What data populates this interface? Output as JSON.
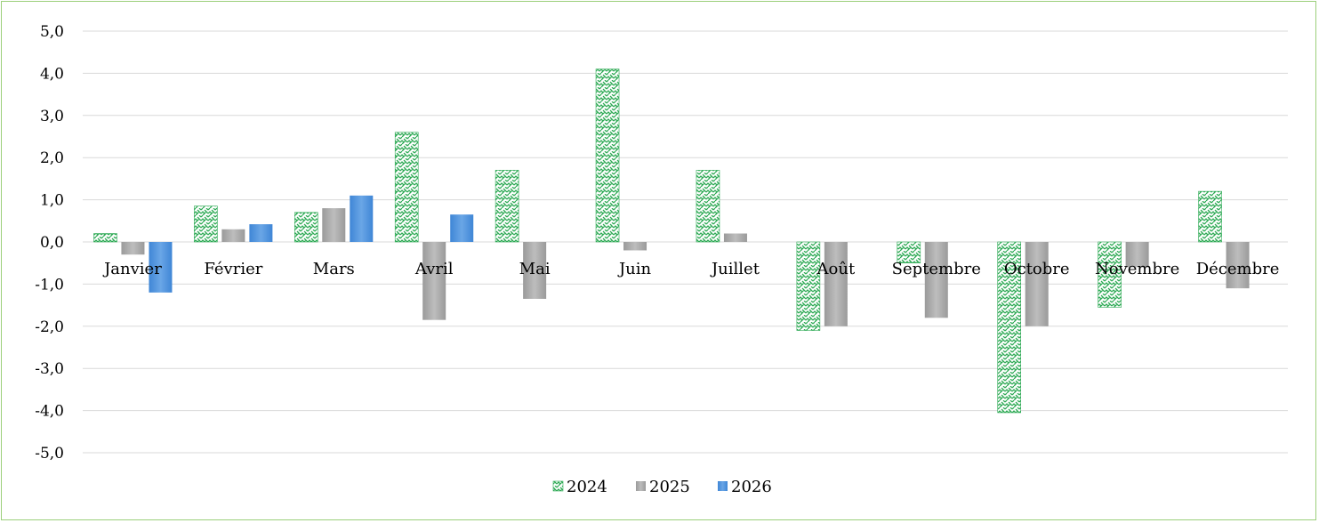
{
  "chart_data": {
    "type": "bar",
    "categories": [
      "Janvier",
      "Février",
      "Mars",
      "Avril",
      "Mai",
      "Juin",
      "Juillet",
      "Août",
      "Septembre",
      "Octobre",
      "Novembre",
      "Décembre"
    ],
    "series": [
      {
        "name": "2024",
        "values": [
          0.2,
          0.85,
          0.7,
          2.6,
          1.7,
          4.1,
          1.7,
          -2.1,
          -0.5,
          -4.05,
          -1.55,
          1.2
        ],
        "color": "#2eaa55",
        "pattern": "green-zigzag"
      },
      {
        "name": "2025",
        "values": [
          -0.3,
          0.3,
          0.8,
          -1.85,
          -1.35,
          -0.2,
          0.2,
          -2.0,
          -1.8,
          -2.0,
          -0.6,
          -1.1
        ],
        "color": "#a6a6a6",
        "pattern": "gray-gradient"
      },
      {
        "name": "2026",
        "values": [
          -1.2,
          0.42,
          1.1,
          0.65,
          null,
          null,
          null,
          null,
          null,
          null,
          null,
          null
        ],
        "color": "#4a90d9",
        "pattern": "blue-gradient"
      }
    ],
    "ylim": [
      -5,
      5
    ],
    "yticks": [
      "5,0",
      "4,0",
      "3,0",
      "2,0",
      "1,0",
      "0,0",
      "-1,0",
      "-2,0",
      "-3,0",
      "-4,0",
      "-5,0"
    ],
    "grid": true,
    "legend_position": "bottom-center",
    "title": "",
    "xlabel": "",
    "ylabel": "",
    "frame_color": "#9bcf7a"
  }
}
